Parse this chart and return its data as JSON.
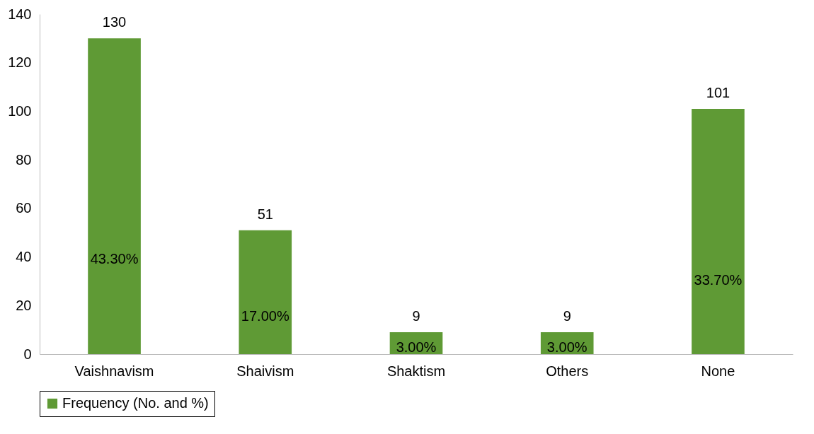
{
  "chart_data": {
    "type": "bar",
    "categories": [
      "Vaishnavism",
      "Shaivism",
      "Shaktism",
      "Others",
      "None"
    ],
    "series": [
      {
        "name": "Frequency (No. and %)",
        "color": "#5f9a35",
        "values": [
          130,
          51,
          9,
          9,
          101
        ]
      }
    ],
    "ylim": [
      0,
      140
    ],
    "yticks": [
      0,
      20,
      40,
      60,
      80,
      100,
      120,
      140
    ],
    "grid": false,
    "legend": "bottom",
    "data_labels": true,
    "annotations": [
      "43.30%",
      "17.00%",
      "3.00%",
      "3.00%",
      "33.70%"
    ]
  }
}
